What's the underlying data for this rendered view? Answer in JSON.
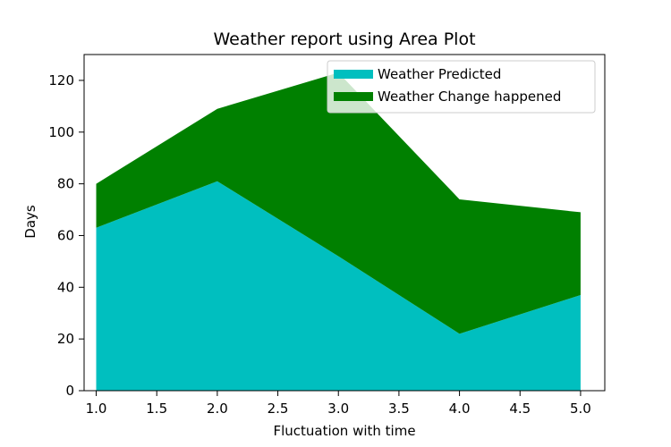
{
  "chart_data": {
    "type": "area",
    "stacked": true,
    "title": "Weather report using Area Plot",
    "xlabel": "Fluctuation with time",
    "ylabel": "Days",
    "x": [
      1.0,
      2.0,
      3.0,
      4.0,
      5.0
    ],
    "xlim": [
      0.9,
      5.2
    ],
    "ylim": [
      0,
      130
    ],
    "xticks": [
      1.0,
      1.5,
      2.0,
      2.5,
      3.0,
      3.5,
      4.0,
      4.5,
      5.0
    ],
    "xtick_labels": [
      "1.0",
      "1.5",
      "2.0",
      "2.5",
      "3.0",
      "3.5",
      "4.0",
      "4.5",
      "5.0"
    ],
    "yticks": [
      0,
      20,
      40,
      60,
      80,
      100,
      120
    ],
    "ytick_labels": [
      "0",
      "20",
      "40",
      "60",
      "80",
      "100",
      "120"
    ],
    "grid": false,
    "legend_position": "top-right",
    "series": [
      {
        "name": "Weather Predicted",
        "color": "#00bfbf",
        "values": [
          63,
          81,
          52,
          22,
          37
        ]
      },
      {
        "name": "Weather Change happened",
        "color": "#008000",
        "values": [
          17,
          28,
          71,
          52,
          32
        ]
      }
    ]
  }
}
